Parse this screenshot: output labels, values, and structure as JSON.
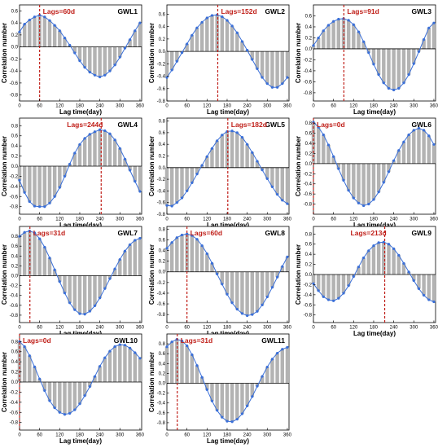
{
  "figure": {
    "xlabel": "Lag time(day)",
    "ylabel": "Correlation number",
    "bar_color": "#b3b3b3",
    "line_color": "#3a6fd8",
    "lag_color": "#c0201a"
  },
  "chart_data": [
    {
      "type": "bar",
      "title": "GWL1",
      "lag_label": "Lags=60d",
      "lag_day": 60,
      "xlabel": "Lag time(day)",
      "ylabel": "Correlation number",
      "xlim": [
        0,
        365
      ],
      "xticks": [
        0,
        60,
        120,
        180,
        240,
        300,
        360
      ],
      "ylim": [
        -0.9,
        0.7
      ],
      "yticks": [
        -0.8,
        -0.6,
        -0.4,
        -0.2,
        0.0,
        0.2,
        0.4,
        0.6
      ],
      "x": [
        0,
        15,
        30,
        45,
        60,
        75,
        90,
        105,
        120,
        135,
        150,
        165,
        180,
        195,
        210,
        225,
        240,
        255,
        270,
        285,
        300,
        315,
        330,
        345,
        360
      ],
      "values": [
        0.25,
        0.38,
        0.45,
        0.5,
        0.53,
        0.5,
        0.44,
        0.36,
        0.27,
        0.15,
        0.03,
        -0.1,
        -0.23,
        -0.34,
        -0.42,
        -0.47,
        -0.5,
        -0.47,
        -0.4,
        -0.3,
        -0.17,
        -0.02,
        0.12,
        0.27,
        0.4
      ]
    },
    {
      "type": "bar",
      "title": "GWL2",
      "lag_label": "Lags=152d",
      "lag_day": 152,
      "xlabel": "Lag time(day)",
      "ylabel": "Correlation number",
      "xlim": [
        0,
        365
      ],
      "xticks": [
        0,
        60,
        120,
        180,
        240,
        300,
        360
      ],
      "ylim": [
        -0.8,
        0.75
      ],
      "yticks": [
        -0.8,
        -0.6,
        -0.4,
        -0.2,
        0.0,
        0.2,
        0.4,
        0.6
      ],
      "x": [
        0,
        15,
        30,
        45,
        60,
        75,
        90,
        105,
        120,
        135,
        150,
        165,
        180,
        195,
        210,
        225,
        240,
        255,
        270,
        285,
        300,
        315,
        330,
        345,
        360
      ],
      "values": [
        -0.42,
        -0.3,
        -0.16,
        -0.02,
        0.12,
        0.26,
        0.38,
        0.47,
        0.54,
        0.58,
        0.59,
        0.56,
        0.5,
        0.41,
        0.3,
        0.16,
        0.02,
        -0.13,
        -0.28,
        -0.42,
        -0.52,
        -0.58,
        -0.58,
        -0.52,
        -0.42
      ]
    },
    {
      "type": "bar",
      "title": "GWL3",
      "lag_label": "Lags=91d",
      "lag_day": 91,
      "xlabel": "Lag time(day)",
      "ylabel": "Correlation number",
      "xlim": [
        0,
        365
      ],
      "xticks": [
        0,
        60,
        120,
        180,
        240,
        300,
        360
      ],
      "ylim": [
        -0.95,
        0.8
      ],
      "yticks": [
        -0.8,
        -0.6,
        -0.4,
        -0.2,
        0.0,
        0.2,
        0.4,
        0.6
      ],
      "x": [
        0,
        15,
        30,
        45,
        60,
        75,
        90,
        105,
        120,
        135,
        150,
        165,
        180,
        195,
        210,
        225,
        240,
        255,
        270,
        285,
        300,
        315,
        330,
        345,
        360
      ],
      "values": [
        0.06,
        0.2,
        0.33,
        0.43,
        0.5,
        0.54,
        0.55,
        0.52,
        0.44,
        0.31,
        0.13,
        -0.07,
        -0.28,
        -0.47,
        -0.62,
        -0.72,
        -0.75,
        -0.72,
        -0.62,
        -0.47,
        -0.27,
        -0.05,
        0.17,
        0.38,
        0.47
      ]
    },
    {
      "type": "bar",
      "title": "GWL4",
      "lag_label": "Lags=244d",
      "lag_day": 244,
      "xlabel": "Lag time(day)",
      "ylabel": "Correlation number",
      "xlim": [
        0,
        365
      ],
      "xticks": [
        0,
        60,
        120,
        180,
        240,
        300,
        360
      ],
      "ylim": [
        -0.95,
        0.95
      ],
      "yticks": [
        -0.8,
        -0.6,
        -0.4,
        -0.2,
        0.0,
        0.2,
        0.4,
        0.6,
        0.8
      ],
      "x": [
        0,
        15,
        30,
        45,
        60,
        75,
        90,
        105,
        120,
        135,
        150,
        165,
        180,
        195,
        210,
        225,
        240,
        255,
        270,
        285,
        300,
        315,
        330,
        345,
        360
      ],
      "values": [
        -0.28,
        -0.52,
        -0.7,
        -0.79,
        -0.8,
        -0.8,
        -0.73,
        -0.6,
        -0.42,
        -0.2,
        0.04,
        0.26,
        0.43,
        0.55,
        0.63,
        0.68,
        0.72,
        0.7,
        0.64,
        0.52,
        0.35,
        0.14,
        -0.08,
        -0.3,
        -0.5
      ]
    },
    {
      "type": "bar",
      "title": "GWL5",
      "lag_label": "Lags=182d",
      "lag_day": 182,
      "xlabel": "Lag time(day)",
      "ylabel": "Correlation number",
      "xlim": [
        0,
        365
      ],
      "xticks": [
        0,
        60,
        120,
        180,
        240,
        300,
        360
      ],
      "ylim": [
        -0.8,
        0.85
      ],
      "yticks": [
        -0.8,
        -0.6,
        -0.4,
        -0.2,
        0.0,
        0.2,
        0.4,
        0.6,
        0.8
      ],
      "x": [
        0,
        15,
        30,
        45,
        60,
        75,
        90,
        105,
        120,
        135,
        150,
        165,
        180,
        195,
        210,
        225,
        240,
        255,
        270,
        285,
        300,
        315,
        330,
        345,
        360
      ],
      "values": [
        -0.65,
        -0.66,
        -0.6,
        -0.52,
        -0.4,
        -0.26,
        -0.11,
        0.04,
        0.19,
        0.33,
        0.46,
        0.56,
        0.62,
        0.63,
        0.6,
        0.52,
        0.4,
        0.26,
        0.11,
        -0.04,
        -0.19,
        -0.33,
        -0.46,
        -0.56,
        -0.62
      ]
    },
    {
      "type": "bar",
      "title": "GWL6",
      "lag_label": "Lags=0d",
      "lag_day": 0,
      "xlabel": "Lag time(day)",
      "ylabel": "Correlation number",
      "xlim": [
        0,
        365
      ],
      "xticks": [
        0,
        60,
        120,
        180,
        240,
        300,
        360
      ],
      "ylim": [
        -1.0,
        0.9
      ],
      "yticks": [
        -0.8,
        -0.6,
        -0.4,
        -0.2,
        0.0,
        0.2,
        0.4,
        0.6,
        0.8
      ],
      "x": [
        0,
        15,
        30,
        45,
        60,
        75,
        90,
        105,
        120,
        135,
        150,
        165,
        180,
        195,
        210,
        225,
        240,
        255,
        270,
        285,
        300,
        315,
        330,
        345,
        360
      ],
      "values": [
        0.82,
        0.72,
        0.57,
        0.37,
        0.14,
        -0.1,
        -0.33,
        -0.53,
        -0.68,
        -0.78,
        -0.83,
        -0.8,
        -0.71,
        -0.56,
        -0.37,
        -0.16,
        0.06,
        0.26,
        0.43,
        0.57,
        0.66,
        0.7,
        0.66,
        0.55,
        0.38
      ]
    },
    {
      "type": "bar",
      "title": "GWL7",
      "lag_label": "Lags=31d",
      "lag_day": 31,
      "xlabel": "Lag time(day)",
      "ylabel": "Correlation number",
      "xlim": [
        0,
        365
      ],
      "xticks": [
        0,
        60,
        120,
        180,
        240,
        300,
        360
      ],
      "ylim": [
        -0.95,
        1.0
      ],
      "yticks": [
        -0.8,
        -0.6,
        -0.4,
        -0.2,
        0.0,
        0.2,
        0.4,
        0.6,
        0.8
      ],
      "x": [
        0,
        15,
        30,
        45,
        60,
        75,
        90,
        105,
        120,
        135,
        150,
        165,
        180,
        195,
        210,
        225,
        240,
        255,
        270,
        285,
        300,
        315,
        330,
        345,
        360
      ],
      "values": [
        0.8,
        0.88,
        0.91,
        0.87,
        0.75,
        0.58,
        0.36,
        0.12,
        -0.12,
        -0.35,
        -0.55,
        -0.69,
        -0.77,
        -0.78,
        -0.72,
        -0.61,
        -0.45,
        -0.26,
        -0.06,
        0.14,
        0.33,
        0.5,
        0.63,
        0.72,
        0.76
      ]
    },
    {
      "type": "bar",
      "title": "GWL8",
      "lag_label": "Lags=60d",
      "lag_day": 60,
      "xlabel": "Lag time(day)",
      "ylabel": "Correlation number",
      "xlim": [
        0,
        365
      ],
      "xticks": [
        0,
        60,
        120,
        180,
        240,
        300,
        360
      ],
      "ylim": [
        -0.95,
        0.85
      ],
      "yticks": [
        -0.8,
        -0.6,
        -0.4,
        -0.2,
        0.0,
        0.2,
        0.4,
        0.6,
        0.8
      ],
      "x": [
        0,
        15,
        30,
        45,
        60,
        75,
        90,
        105,
        120,
        135,
        150,
        165,
        180,
        195,
        210,
        225,
        240,
        255,
        270,
        285,
        300,
        315,
        330,
        345,
        360
      ],
      "values": [
        0.44,
        0.55,
        0.64,
        0.69,
        0.71,
        0.68,
        0.61,
        0.49,
        0.34,
        0.16,
        -0.04,
        -0.23,
        -0.42,
        -0.58,
        -0.7,
        -0.78,
        -0.82,
        -0.8,
        -0.74,
        -0.62,
        -0.47,
        -0.29,
        -0.1,
        0.1,
        0.28
      ]
    },
    {
      "type": "bar",
      "title": "GWL9",
      "lag_label": "Lags=213d",
      "lag_day": 213,
      "xlabel": "Lag time(day)",
      "ylabel": "Correlation number",
      "xlim": [
        0,
        365
      ],
      "xticks": [
        0,
        60,
        120,
        180,
        240,
        300,
        360
      ],
      "ylim": [
        -0.95,
        0.95
      ],
      "yticks": [
        -0.8,
        -0.6,
        -0.4,
        -0.2,
        0.0,
        0.2,
        0.4,
        0.6,
        0.8
      ],
      "x": [
        0,
        15,
        30,
        45,
        60,
        75,
        90,
        105,
        120,
        135,
        150,
        165,
        180,
        195,
        210,
        225,
        240,
        255,
        270,
        285,
        300,
        315,
        330,
        345,
        360
      ],
      "values": [
        -0.18,
        -0.32,
        -0.44,
        -0.5,
        -0.52,
        -0.47,
        -0.37,
        -0.22,
        -0.04,
        0.15,
        0.33,
        0.47,
        0.57,
        0.63,
        0.64,
        0.6,
        0.51,
        0.38,
        0.22,
        0.05,
        -0.12,
        -0.28,
        -0.41,
        -0.5,
        -0.54
      ]
    },
    {
      "type": "bar",
      "title": "GWL10",
      "lag_label": "Lags=0d",
      "lag_day": 0,
      "xlabel": "Lag time(day)",
      "ylabel": "Correlation number",
      "xlim": [
        0,
        365
      ],
      "xticks": [
        0,
        60,
        120,
        180,
        240,
        300,
        360
      ],
      "ylim": [
        -0.95,
        0.95
      ],
      "yticks": [
        -0.8,
        -0.6,
        -0.4,
        -0.2,
        0.0,
        0.2,
        0.4,
        0.6,
        0.8
      ],
      "x": [
        0,
        15,
        30,
        45,
        60,
        75,
        90,
        105,
        120,
        135,
        150,
        165,
        180,
        195,
        210,
        225,
        240,
        255,
        270,
        285,
        300,
        315,
        330,
        345,
        360
      ],
      "values": [
        0.8,
        0.7,
        0.52,
        0.3,
        0.06,
        -0.17,
        -0.37,
        -0.51,
        -0.6,
        -0.64,
        -0.62,
        -0.55,
        -0.43,
        -0.27,
        -0.09,
        0.11,
        0.31,
        0.48,
        0.61,
        0.7,
        0.74,
        0.73,
        0.67,
        0.58,
        0.47
      ]
    },
    {
      "type": "bar",
      "title": "GWL11",
      "lag_label": "Lags=31d",
      "lag_day": 31,
      "xlabel": "Lag time(day)",
      "ylabel": "Correlation number",
      "xlim": [
        0,
        365
      ],
      "xticks": [
        0,
        60,
        120,
        180,
        240,
        300,
        360
      ],
      "ylim": [
        -0.95,
        1.0
      ],
      "yticks": [
        -0.8,
        -0.6,
        -0.4,
        -0.2,
        0.0,
        0.2,
        0.4,
        0.6,
        0.8
      ],
      "x": [
        0,
        15,
        30,
        45,
        60,
        75,
        90,
        105,
        120,
        135,
        150,
        165,
        180,
        195,
        210,
        225,
        240,
        255,
        270,
        285,
        300,
        315,
        330,
        345,
        360
      ],
      "values": [
        0.74,
        0.84,
        0.89,
        0.86,
        0.76,
        0.58,
        0.36,
        0.12,
        -0.13,
        -0.36,
        -0.55,
        -0.69,
        -0.77,
        -0.78,
        -0.73,
        -0.62,
        -0.46,
        -0.27,
        -0.06,
        0.14,
        0.33,
        0.49,
        0.61,
        0.69,
        0.73
      ]
    }
  ]
}
